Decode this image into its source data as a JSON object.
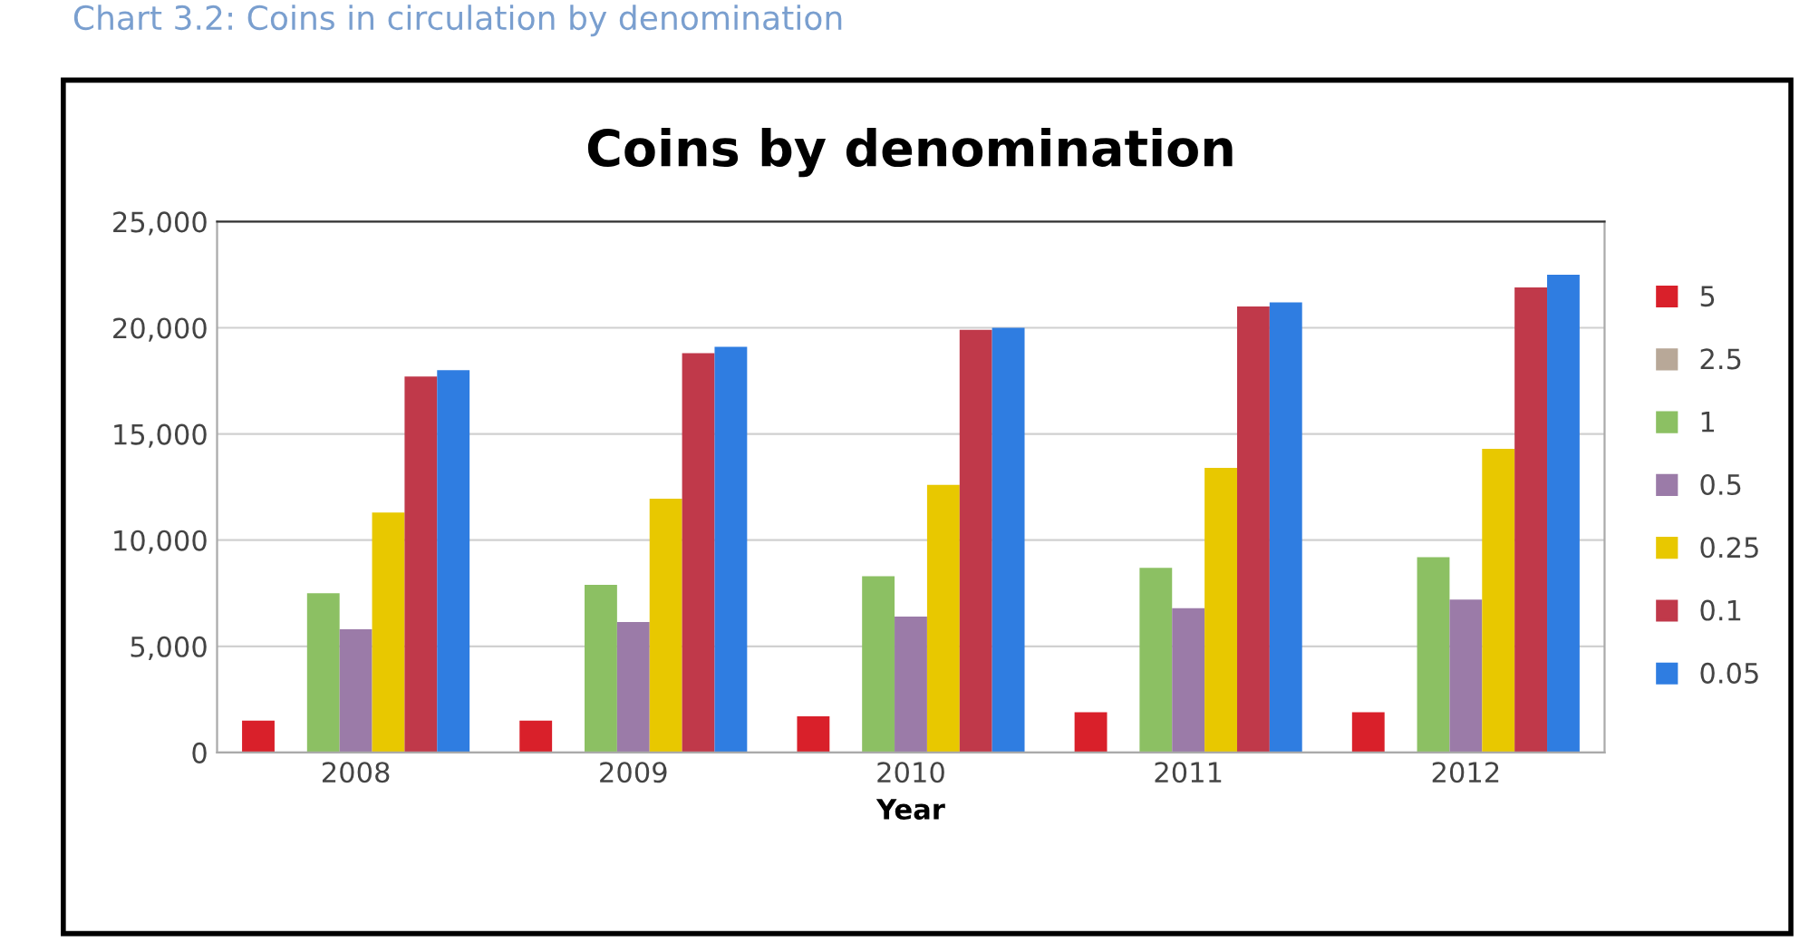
{
  "chart_data": {
    "type": "bar",
    "title": "Coins by denomination",
    "xlabel": "Year",
    "annotations": [
      "Chart 3.2: Coins in circulation by denomination"
    ],
    "categories": [
      "2008",
      "2009",
      "2010",
      "2011",
      "2012"
    ],
    "series": [
      {
        "name": "5",
        "color": "#d9202a",
        "values": [
          1500,
          1500,
          1700,
          1900,
          1900
        ]
      },
      {
        "name": "2.5",
        "color": "#b8a898",
        "values": [
          null,
          null,
          null,
          null,
          null
        ]
      },
      {
        "name": "1",
        "color": "#8cc063",
        "values": [
          7500,
          7900,
          8300,
          8700,
          9200
        ]
      },
      {
        "name": "0.5",
        "color": "#9b7ba8",
        "values": [
          5800,
          6150,
          6400,
          6800,
          7200
        ]
      },
      {
        "name": "0.25",
        "color": "#e8c800",
        "values": [
          11300,
          11950,
          12600,
          13400,
          14300
        ]
      },
      {
        "name": "0.1",
        "color": "#c0394a",
        "values": [
          17700,
          18800,
          19900,
          21000,
          21900
        ]
      },
      {
        "name": "0.05",
        "color": "#2f7de1",
        "values": [
          18000,
          19100,
          20000,
          21200,
          22500
        ]
      }
    ],
    "ylim": [
      0,
      25000
    ],
    "yticks": [
      {
        "value": 0,
        "label": "0"
      },
      {
        "value": 5000,
        "label": "5,000"
      },
      {
        "value": 10000,
        "label": "10,000"
      },
      {
        "value": 15000,
        "label": "15,000"
      },
      {
        "value": 20000,
        "label": "20,000"
      },
      {
        "value": 25000,
        "label": "25,000"
      }
    ],
    "grid": "y",
    "legend": "right"
  }
}
